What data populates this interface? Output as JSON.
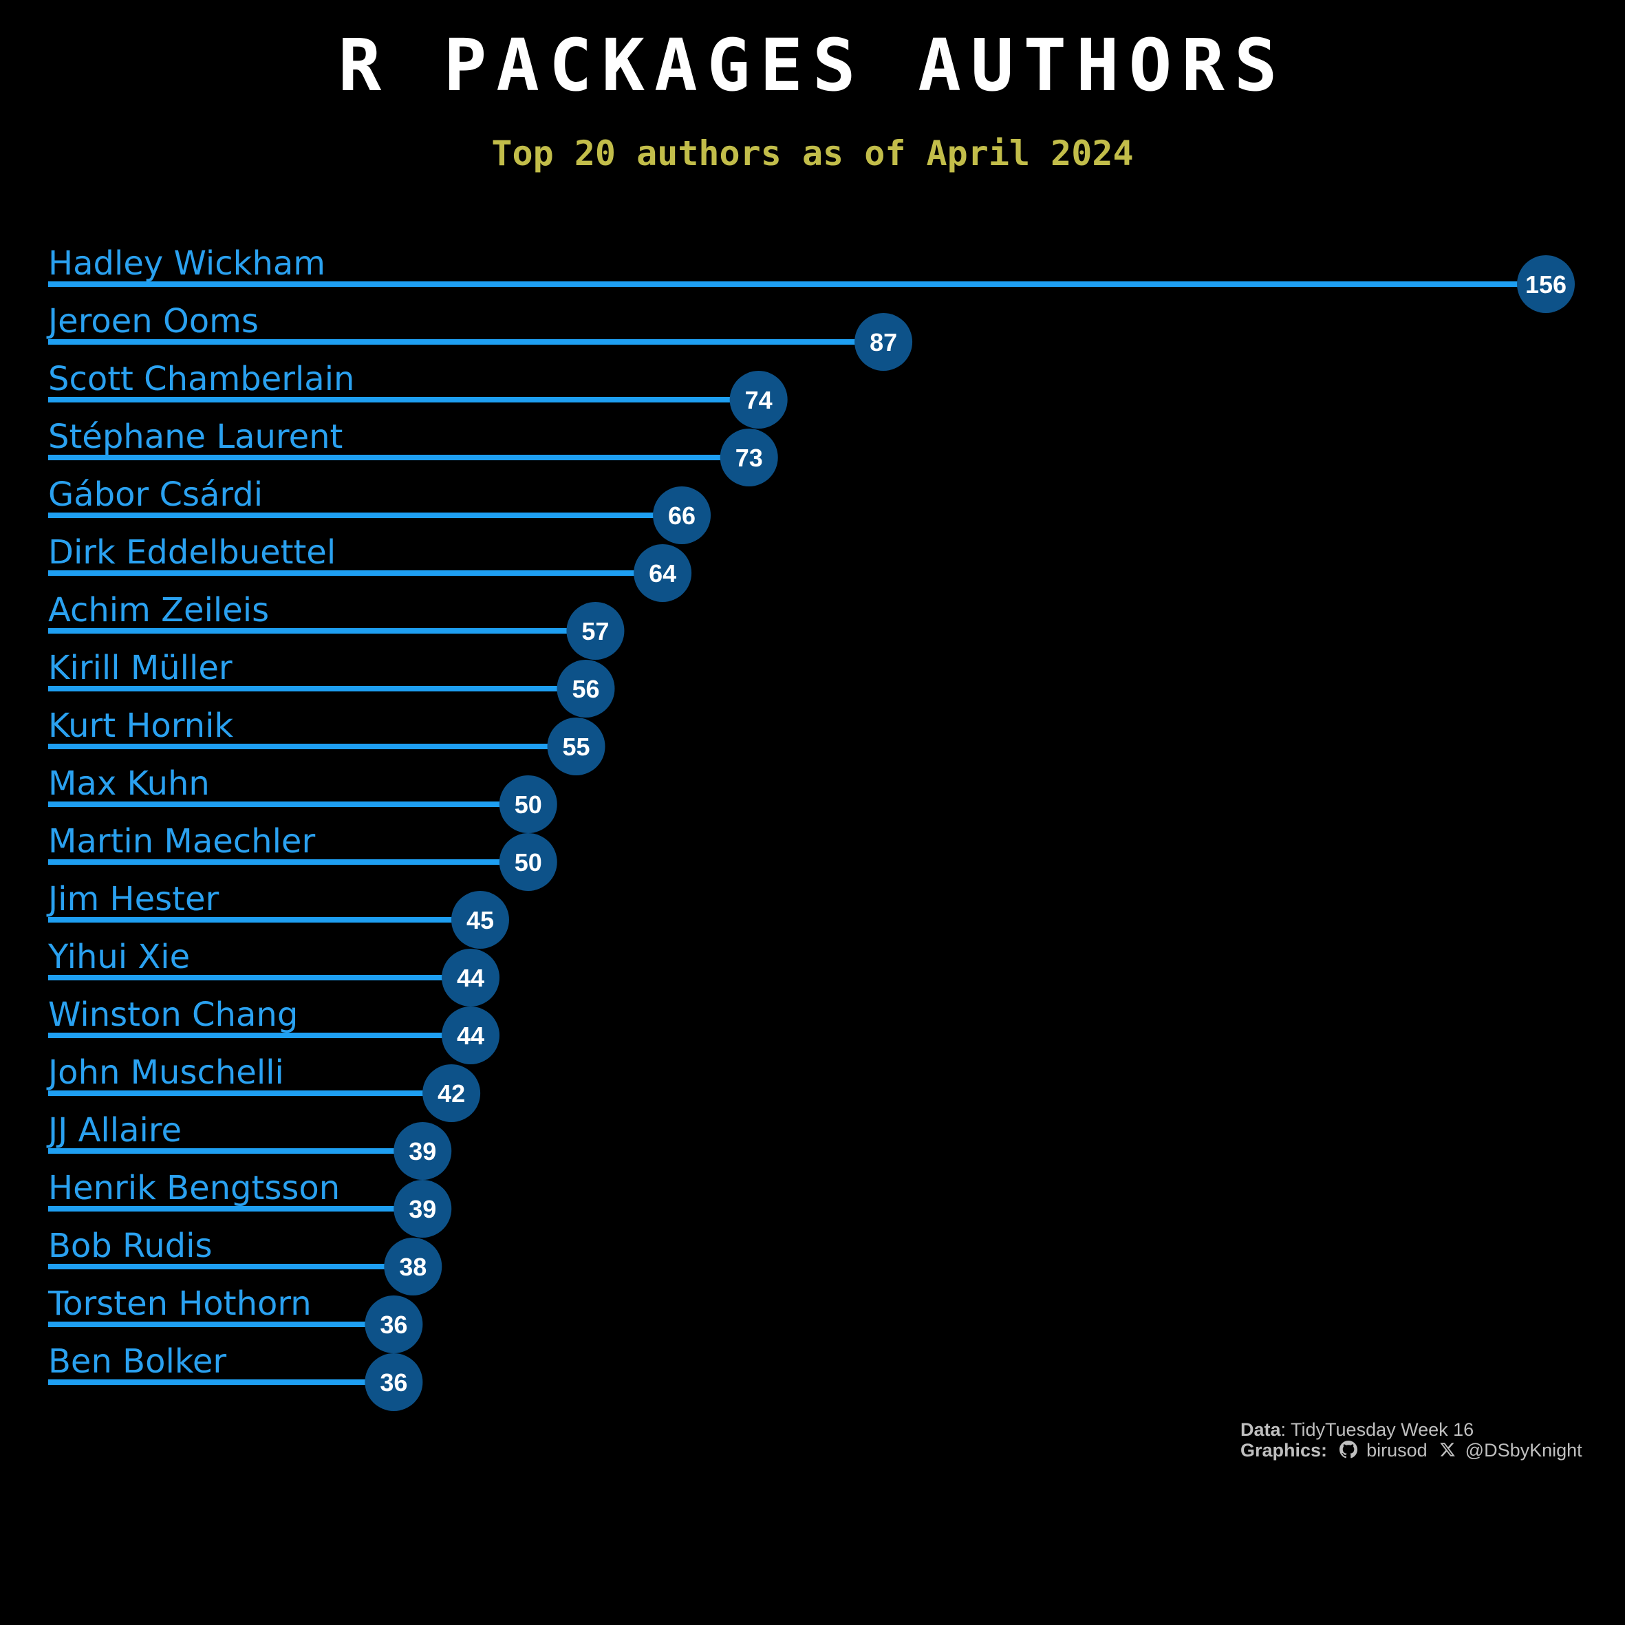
{
  "chart_data": {
    "type": "bar",
    "title": "R PACKAGES AUTHORS",
    "subtitle": "Top 20 authors as of April 2024",
    "categories": [
      "Hadley Wickham",
      "Jeroen Ooms",
      "Scott Chamberlain",
      "Stéphane Laurent",
      "Gábor Csárdi",
      "Dirk Eddelbuettel",
      "Achim Zeileis",
      "Kirill Müller",
      "Kurt Hornik",
      "Max Kuhn",
      "Martin Maechler",
      "Jim Hester",
      "Yihui Xie",
      "Winston Chang",
      "John Muschelli",
      "JJ Allaire",
      "Henrik Bengtsson",
      "Bob Rudis",
      "Torsten Hothorn",
      "Ben Bolker"
    ],
    "values": [
      156,
      87,
      74,
      73,
      66,
      64,
      57,
      56,
      55,
      50,
      50,
      45,
      44,
      44,
      42,
      39,
      39,
      38,
      36,
      36
    ],
    "xlim": [
      0,
      156
    ],
    "orientation": "horizontal",
    "grid": false,
    "colors": {
      "background": "#000000",
      "bar": "#1e9ff2",
      "label": "#2aa1f0",
      "point": "#0d5289",
      "value_text": "#ffffff",
      "title": "#ffffff",
      "subtitle": "#c2bd4a",
      "caption": "#bfbfbf"
    }
  },
  "caption": {
    "data_key": "Data",
    "data_value": "TidyTuesday Week 16",
    "graphics_key": "Graphics:",
    "github_icon": "github-icon",
    "github_handle": "birusod",
    "x_icon": "x-twitter-icon",
    "x_handle": "@DSbyKnight"
  }
}
